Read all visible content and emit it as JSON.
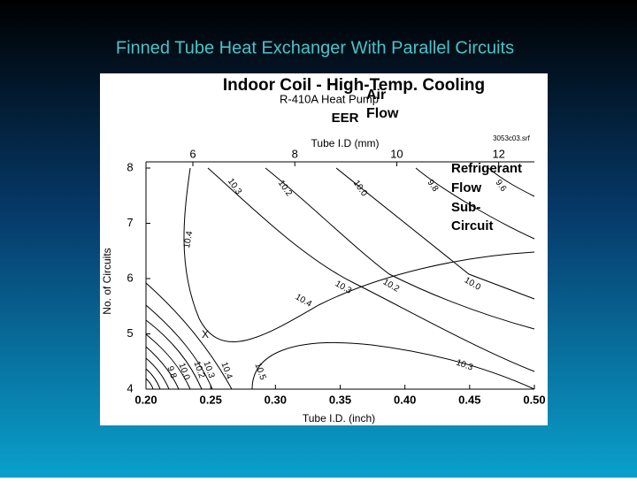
{
  "slide": {
    "title": "Finned Tube Heat Exchanger With Parallel Circuits"
  },
  "figure": {
    "title": "Indoor Coil - High-Temp. Cooling",
    "subtitle": "R-410A Heat Pump",
    "metric": "EER",
    "file": "3053c03.srf",
    "air_flow": [
      "Air",
      "Flow"
    ],
    "refrigerant_flow": [
      "Refrigerant",
      "Flow",
      "Sub-",
      "Circuit"
    ],
    "top_axis": {
      "label": "Tube I.D (mm)",
      "ticks": [
        6,
        8,
        10,
        12
      ]
    },
    "bottom_axis": {
      "label": "Tube I.D. (inch)",
      "lim": [
        0.2,
        0.5
      ],
      "ticks": [
        {
          "value": 0.2,
          "label": "0.20"
        },
        {
          "value": 0.25,
          "label": "0.25"
        },
        {
          "value": 0.3,
          "label": "0.30"
        },
        {
          "value": 0.35,
          "label": "0.35"
        },
        {
          "value": 0.4,
          "label": "0.40"
        },
        {
          "value": 0.45,
          "label": "0.45"
        },
        {
          "value": 0.5,
          "label": "0.50"
        }
      ]
    },
    "left_axis": {
      "label": "No. of Circuits",
      "lim": [
        4,
        8
      ],
      "ticks": [
        4,
        5,
        6,
        7,
        8
      ]
    },
    "contour_labels": [
      "10.3",
      "10.2",
      "10.0",
      "9.8",
      "9.6",
      "10.4",
      "10.3",
      "10.2",
      "10.0",
      "10.4",
      "10.5",
      "10.3",
      "10.4",
      "10.3",
      "10.2",
      "10.0",
      "9.8"
    ],
    "optimum_marker": "X"
  }
}
